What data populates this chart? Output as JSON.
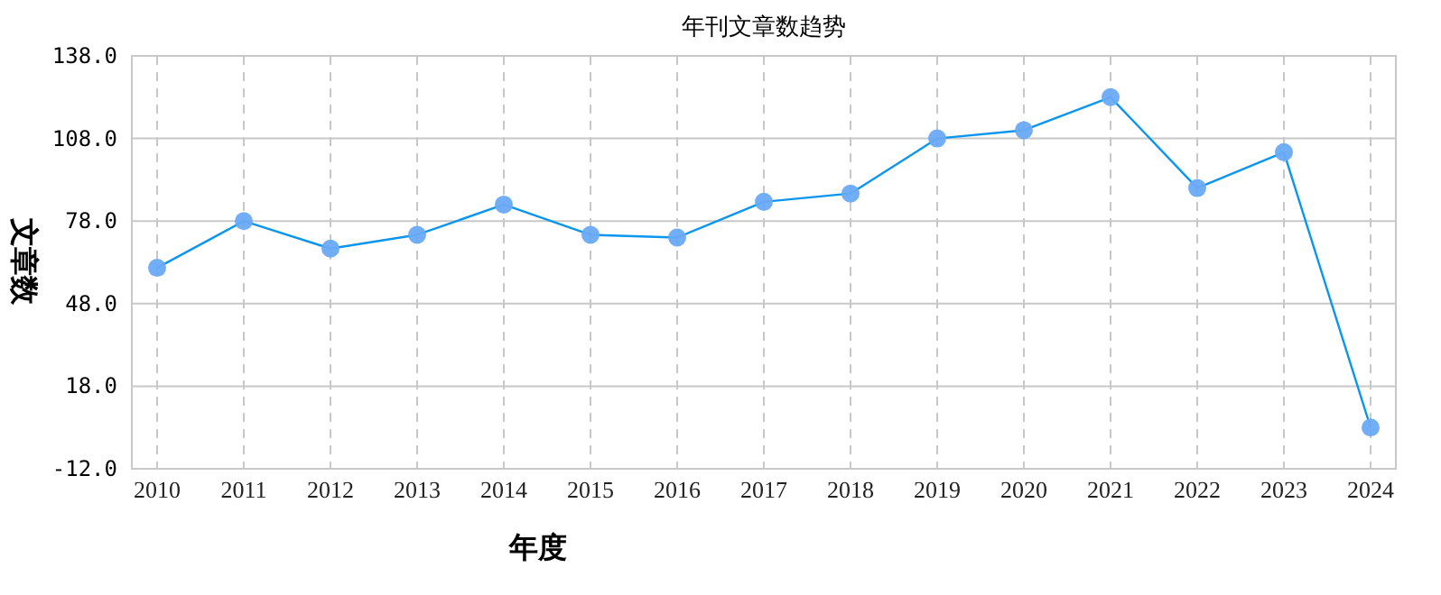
{
  "chart_data": {
    "type": "line",
    "title": "年刊文章数趋势",
    "xlabel": "年度",
    "ylabel": "文章数",
    "categories": [
      "2010",
      "2011",
      "2012",
      "2013",
      "2014",
      "2015",
      "2016",
      "2017",
      "2018",
      "2019",
      "2020",
      "2021",
      "2022",
      "2023",
      "2024"
    ],
    "series": [
      {
        "color": "#0a96f0",
        "values": [
          61,
          78,
          68,
          73,
          84,
          73,
          72,
          85,
          88,
          108,
          111,
          123,
          90,
          103,
          3
        ]
      }
    ],
    "ylim": [
      -12,
      138
    ],
    "yticks": [
      {
        "value": -12,
        "label": "-12.0"
      },
      {
        "value": 18,
        "label": "18.0"
      },
      {
        "value": 48,
        "label": "48.0"
      },
      {
        "value": 78,
        "label": "78.0"
      },
      {
        "value": 108,
        "label": "108.0"
      },
      {
        "value": 138,
        "label": "138.0"
      }
    ],
    "grid": true,
    "marker": "circle",
    "line_style": "solid"
  }
}
